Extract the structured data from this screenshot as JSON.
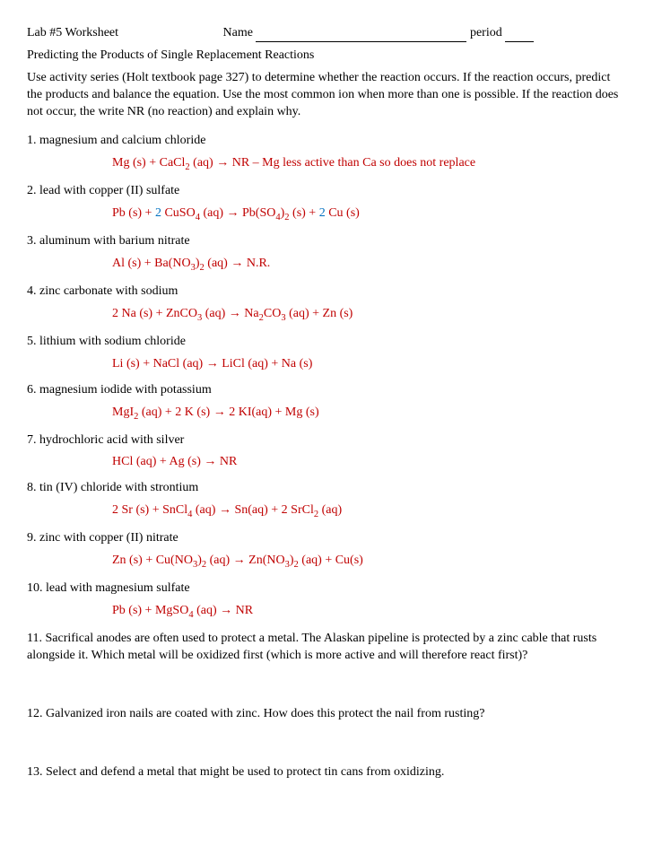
{
  "header": {
    "worksheet": "Lab #5 Worksheet",
    "name_label": "Name",
    "period_label": "period"
  },
  "subtitle": "Predicting the Products of Single Replacement Reactions",
  "instructions": "Use activity series (Holt textbook page 327) to determine whether the reaction occurs.  If the reaction occurs, predict the products and balance the equation.  Use the most common ion when more than one is possible.  If the reaction does not occur, the write NR (no reaction) and explain why.",
  "problems": [
    {
      "n": "1.",
      "prompt": "magnesium and calcium chloride",
      "eq_html": "Mg (s)  +  CaCl<sub>2</sub> (aq)  <span class='arrow'>&#8594;</span>   NR – Mg less active than Ca so does not replace"
    },
    {
      "n": "2.",
      "prompt": "lead with copper (II) sulfate",
      "eq_html": "Pb (s)  + <span class='blue'>2</span> CuSO<sub>4</sub> (aq)  <span class='arrow'>&#8594;</span>  Pb(SO<sub>4</sub>)<sub>2</sub> (s)    +  <span class='blue'>2</span> Cu (s)"
    },
    {
      "n": "3.",
      "prompt": "aluminum with barium nitrate",
      "eq_html": "Al (s)  +  Ba(NO<sub>3</sub>)<sub>2</sub> (aq)  <span class='arrow'>&#8594;</span>  N.R."
    },
    {
      "n": "4.",
      "prompt": "zinc carbonate with sodium",
      "eq_html": "2 Na (s)  +  ZnCO<sub>3</sub> (aq)  <span class='arrow'>&#8594;</span>   Na<sub>2</sub>CO<sub>3</sub> (aq)  +  Zn (s)"
    },
    {
      "n": "5.",
      "prompt": "lithium with sodium chloride",
      "eq_html": "Li (s)  +  NaCl (aq)  <span class='arrow'>&#8594;</span>   LiCl (aq)   +   Na (s)"
    },
    {
      "n": "6.",
      "prompt": "magnesium iodide with potassium",
      "eq_html": "MgI<sub>2</sub> (aq)    + 2 K (s)  <span class='arrow'>&#8594;</span> 2 KI(aq)  +  Mg (s)"
    },
    {
      "n": "7.",
      "prompt": "hydrochloric acid with silver",
      "eq_html": "HCl (aq)   +  Ag (s)  <span class='arrow'>&#8594;</span>   NR"
    },
    {
      "n": "8.",
      "prompt": "tin (IV) chloride with strontium",
      "eq_html": "2 Sr (s)  +  SnCl<sub>4</sub> (aq)  <span class='arrow'>&#8594;</span>   Sn(aq)   +   2 SrCl<sub>2</sub> (aq)"
    },
    {
      "n": "9.",
      "prompt": "zinc with copper (II) nitrate",
      "eq_html": "Zn (s)  +  Cu(NO<sub>3</sub>)<sub>2</sub> (aq)  <span class='arrow'>&#8594;</span>   Zn(NO<sub>3</sub>)<sub>2</sub> (aq)  +  Cu(s)"
    },
    {
      "n": "10.",
      "prompt": "lead with magnesium sulfate",
      "eq_html": "Pb (s)  +  MgSO<sub>4</sub> (aq)  <span class='arrow'>&#8594;</span>   NR"
    }
  ],
  "followups": [
    {
      "n": "11.",
      "text": "Sacrifical anodes are often used to protect a metal.  The Alaskan pipeline is protected by a zinc cable that rusts alongside it.  Which metal will be oxidized first (which is more active and will therefore react first)?"
    },
    {
      "n": "12.",
      "text": "Galvanized iron nails are coated with zinc.  How does this protect the nail from rusting?"
    },
    {
      "n": "13.",
      "text": "Select and defend a metal that might be used to protect tin cans from oxidizing."
    }
  ]
}
